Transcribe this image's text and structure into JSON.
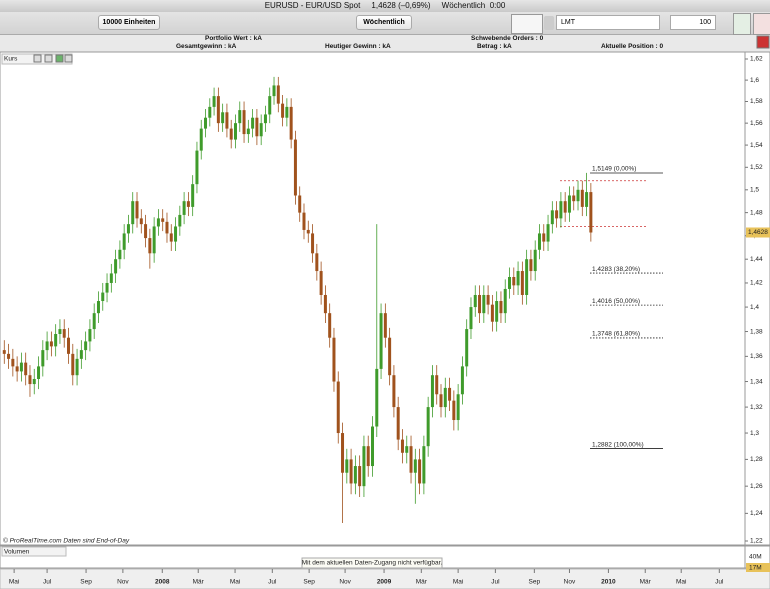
{
  "window": {
    "title": "EURUSD - EUR/USD Spot     1,4628 (–0,69%)     Wöchentlich  0:00"
  },
  "toolbar": {
    "units": "10000 Einheiten",
    "period": "Wöchentlich",
    "order_type": "LMT",
    "quantity": "100"
  },
  "info": {
    "portfolio_value": "Portfolio Wert : kA",
    "pending_orders": "Schwebende Orders : 0",
    "total_gain": "Gesamtgewinn : kA",
    "todays_gain": "Heutiger Gewinn : kA",
    "amount": "Betrag : kA",
    "position": "Aktuelle Position : 0"
  },
  "panels": {
    "price": "Kurs",
    "volume": "Volumen",
    "volume_notice": "Mit dem aktuellen Daten-Zugang nicht verfügbar.",
    "credit": "© ProRealTime.com  Daten sind End-of-Day",
    "volume_axis_top": "40M",
    "volume_axis_last": "17M"
  },
  "chart_data": {
    "type": "candlestick",
    "log_scale": true,
    "up_color": "#3f9b2b",
    "down_color": "#a0521d",
    "xlim": [
      0,
      174
    ],
    "ylim": [
      1.22,
      1.62
    ],
    "x": [
      1,
      2,
      3,
      4,
      5,
      6,
      7,
      8,
      9,
      10,
      11,
      12,
      13,
      14,
      15,
      16,
      17,
      18,
      19,
      20,
      21,
      22,
      23,
      24,
      25,
      26,
      27,
      28,
      29,
      30,
      31,
      32,
      33,
      34,
      35,
      36,
      37,
      38,
      39,
      40,
      41,
      42,
      43,
      44,
      45,
      46,
      47,
      48,
      49,
      50,
      51,
      52,
      53,
      54,
      55,
      56,
      57,
      58,
      59,
      60,
      61,
      62,
      63,
      64,
      65,
      66,
      67,
      68,
      69,
      70,
      71,
      72,
      73,
      74,
      75,
      76,
      77,
      78,
      79,
      80,
      81,
      82,
      83,
      84,
      85,
      86,
      87,
      88,
      89,
      90,
      91,
      92,
      93,
      94,
      95,
      96,
      97,
      98,
      99,
      100,
      101,
      102,
      103,
      104,
      105,
      106,
      107,
      108,
      109,
      110,
      111,
      112,
      113,
      114,
      115,
      116,
      117,
      118,
      119,
      120,
      121,
      122,
      123,
      124,
      125,
      126,
      127,
      128,
      129,
      130,
      131,
      132,
      133,
      134,
      135,
      136,
      137,
      138
    ],
    "open": [
      1.365,
      1.362,
      1.358,
      1.352,
      1.348,
      1.355,
      1.345,
      1.338,
      1.342,
      1.352,
      1.365,
      1.372,
      1.368,
      1.378,
      1.382,
      1.375,
      1.362,
      1.345,
      1.358,
      1.365,
      1.372,
      1.382,
      1.395,
      1.405,
      1.412,
      1.42,
      1.428,
      1.44,
      1.448,
      1.462,
      1.47,
      1.49,
      1.475,
      1.47,
      1.458,
      1.445,
      1.468,
      1.475,
      1.472,
      1.462,
      1.455,
      1.468,
      1.478,
      1.49,
      1.485,
      1.505,
      1.535,
      1.555,
      1.565,
      1.575,
      1.585,
      1.56,
      1.57,
      1.555,
      1.545,
      1.56,
      1.572,
      1.55,
      1.555,
      1.565,
      1.548,
      1.56,
      1.568,
      1.585,
      1.595,
      1.578,
      1.565,
      1.575,
      1.545,
      1.495,
      1.48,
      1.465,
      1.462,
      1.445,
      1.43,
      1.41,
      1.395,
      1.375,
      1.34,
      1.3,
      1.27,
      1.28,
      1.262,
      1.275,
      1.26,
      1.29,
      1.275,
      1.305,
      1.35,
      1.395,
      1.375,
      1.345,
      1.32,
      1.295,
      1.285,
      1.29,
      1.27,
      1.28,
      1.262,
      1.29,
      1.32,
      1.345,
      1.33,
      1.32,
      1.335,
      1.325,
      1.31,
      1.33,
      1.352,
      1.382,
      1.4,
      1.41,
      1.395,
      1.41,
      1.402,
      1.388,
      1.405,
      1.395,
      1.415,
      1.425,
      1.418,
      1.43,
      1.41,
      1.44,
      1.43,
      1.448,
      1.462,
      1.455,
      1.47,
      1.482,
      1.475,
      1.49,
      1.48,
      1.495,
      1.49,
      1.5,
      1.485,
      1.498
    ],
    "high": [
      1.373,
      1.37,
      1.366,
      1.36,
      1.363,
      1.363,
      1.353,
      1.35,
      1.36,
      1.373,
      1.38,
      1.38,
      1.386,
      1.39,
      1.39,
      1.383,
      1.37,
      1.366,
      1.373,
      1.38,
      1.39,
      1.403,
      1.413,
      1.42,
      1.428,
      1.436,
      1.448,
      1.456,
      1.47,
      1.478,
      1.498,
      1.498,
      1.483,
      1.478,
      1.466,
      1.476,
      1.483,
      1.483,
      1.48,
      1.47,
      1.476,
      1.486,
      1.498,
      1.498,
      1.513,
      1.543,
      1.563,
      1.573,
      1.583,
      1.593,
      1.593,
      1.578,
      1.578,
      1.563,
      1.568,
      1.58,
      1.58,
      1.563,
      1.573,
      1.573,
      1.568,
      1.576,
      1.593,
      1.603,
      1.603,
      1.586,
      1.583,
      1.583,
      1.553,
      1.503,
      1.488,
      1.473,
      1.47,
      1.453,
      1.438,
      1.418,
      1.403,
      1.383,
      1.348,
      1.308,
      1.288,
      1.288,
      1.283,
      1.283,
      1.298,
      1.298,
      1.313,
      1.47,
      1.403,
      1.403,
      1.383,
      1.353,
      1.328,
      1.303,
      1.298,
      1.298,
      1.288,
      1.288,
      1.298,
      1.328,
      1.353,
      1.353,
      1.338,
      1.343,
      1.343,
      1.333,
      1.338,
      1.36,
      1.39,
      1.408,
      1.418,
      1.418,
      1.418,
      1.418,
      1.41,
      1.413,
      1.413,
      1.423,
      1.433,
      1.433,
      1.438,
      1.438,
      1.448,
      1.448,
      1.456,
      1.47,
      1.47,
      1.478,
      1.49,
      1.49,
      1.498,
      1.498,
      1.503,
      1.503,
      1.508,
      1.508,
      1.515,
      1.506
    ],
    "low": [
      1.354,
      1.35,
      1.344,
      1.34,
      1.34,
      1.337,
      1.328,
      1.33,
      1.334,
      1.344,
      1.357,
      1.36,
      1.36,
      1.37,
      1.367,
      1.354,
      1.337,
      1.337,
      1.35,
      1.357,
      1.364,
      1.374,
      1.387,
      1.397,
      1.404,
      1.412,
      1.42,
      1.432,
      1.44,
      1.454,
      1.462,
      1.467,
      1.462,
      1.45,
      1.432,
      1.437,
      1.46,
      1.464,
      1.454,
      1.447,
      1.447,
      1.46,
      1.47,
      1.477,
      1.477,
      1.497,
      1.527,
      1.547,
      1.557,
      1.567,
      1.552,
      1.552,
      1.547,
      1.537,
      1.537,
      1.552,
      1.542,
      1.542,
      1.547,
      1.54,
      1.54,
      1.552,
      1.56,
      1.577,
      1.57,
      1.557,
      1.557,
      1.537,
      1.487,
      1.472,
      1.457,
      1.454,
      1.437,
      1.422,
      1.402,
      1.387,
      1.367,
      1.332,
      1.292,
      1.233,
      1.262,
      1.254,
      1.254,
      1.252,
      1.252,
      1.267,
      1.267,
      1.297,
      1.342,
      1.367,
      1.337,
      1.312,
      1.287,
      1.277,
      1.277,
      1.262,
      1.247,
      1.254,
      1.254,
      1.282,
      1.312,
      1.322,
      1.312,
      1.312,
      1.317,
      1.302,
      1.302,
      1.322,
      1.344,
      1.374,
      1.392,
      1.387,
      1.387,
      1.394,
      1.38,
      1.38,
      1.387,
      1.387,
      1.407,
      1.41,
      1.41,
      1.402,
      1.402,
      1.422,
      1.422,
      1.44,
      1.447,
      1.447,
      1.462,
      1.467,
      1.467,
      1.472,
      1.472,
      1.482,
      1.482,
      1.477,
      1.477,
      1.455
    ],
    "close": [
      1.362,
      1.358,
      1.352,
      1.348,
      1.355,
      1.345,
      1.338,
      1.342,
      1.352,
      1.365,
      1.372,
      1.368,
      1.378,
      1.382,
      1.375,
      1.362,
      1.345,
      1.358,
      1.365,
      1.372,
      1.382,
      1.395,
      1.405,
      1.412,
      1.42,
      1.428,
      1.44,
      1.448,
      1.462,
      1.47,
      1.49,
      1.475,
      1.47,
      1.458,
      1.445,
      1.468,
      1.475,
      1.472,
      1.462,
      1.455,
      1.468,
      1.478,
      1.49,
      1.485,
      1.505,
      1.535,
      1.555,
      1.565,
      1.575,
      1.585,
      1.56,
      1.57,
      1.555,
      1.545,
      1.56,
      1.572,
      1.55,
      1.555,
      1.565,
      1.548,
      1.56,
      1.568,
      1.585,
      1.595,
      1.578,
      1.565,
      1.575,
      1.545,
      1.495,
      1.48,
      1.465,
      1.462,
      1.445,
      1.43,
      1.41,
      1.395,
      1.375,
      1.34,
      1.3,
      1.27,
      1.28,
      1.262,
      1.275,
      1.26,
      1.29,
      1.275,
      1.305,
      1.35,
      1.395,
      1.375,
      1.345,
      1.32,
      1.295,
      1.285,
      1.29,
      1.27,
      1.28,
      1.262,
      1.29,
      1.32,
      1.345,
      1.33,
      1.32,
      1.335,
      1.325,
      1.31,
      1.33,
      1.352,
      1.382,
      1.4,
      1.41,
      1.395,
      1.41,
      1.402,
      1.388,
      1.405,
      1.395,
      1.415,
      1.425,
      1.418,
      1.43,
      1.41,
      1.44,
      1.43,
      1.448,
      1.462,
      1.455,
      1.47,
      1.482,
      1.475,
      1.49,
      1.48,
      1.495,
      1.49,
      1.5,
      1.485,
      1.498,
      1.4628
    ],
    "yticks": [
      {
        "value": 1.22,
        "label": "1,22"
      },
      {
        "value": 1.24,
        "label": "1,24"
      },
      {
        "value": 1.26,
        "label": "1,26"
      },
      {
        "value": 1.28,
        "label": "1,28"
      },
      {
        "value": 1.3,
        "label": "1,3"
      },
      {
        "value": 1.32,
        "label": "1,32"
      },
      {
        "value": 1.34,
        "label": "1,34"
      },
      {
        "value": 1.36,
        "label": "1,36"
      },
      {
        "value": 1.38,
        "label": "1,38"
      },
      {
        "value": 1.4,
        "label": "1,4"
      },
      {
        "value": 1.42,
        "label": "1,42"
      },
      {
        "value": 1.44,
        "label": "1,44"
      },
      {
        "value": 1.46,
        "label": "1,46"
      },
      {
        "value": 1.48,
        "label": "1,48"
      },
      {
        "value": 1.5,
        "label": "1,5"
      },
      {
        "value": 1.52,
        "label": "1,52"
      },
      {
        "value": 1.54,
        "label": "1,54"
      },
      {
        "value": 1.56,
        "label": "1,56"
      },
      {
        "value": 1.58,
        "label": "1,58"
      },
      {
        "value": 1.6,
        "label": "1,6"
      },
      {
        "value": 1.62,
        "label": "1,62"
      }
    ],
    "xticks": [
      {
        "value": 3.3,
        "label": "Mai"
      },
      {
        "value": 11,
        "label": "Jul"
      },
      {
        "value": 20.1,
        "label": "Sep"
      },
      {
        "value": 28.7,
        "label": "Nov"
      },
      {
        "value": 37.9,
        "label": "2008"
      },
      {
        "value": 46.3,
        "label": "Mär"
      },
      {
        "value": 54.9,
        "label": "Mai"
      },
      {
        "value": 63.6,
        "label": "Jul"
      },
      {
        "value": 72.2,
        "label": "Sep"
      },
      {
        "value": 80.6,
        "label": "Nov"
      },
      {
        "value": 89.7,
        "label": "2009"
      },
      {
        "value": 98.4,
        "label": "Mär"
      },
      {
        "value": 107,
        "label": "Mai"
      },
      {
        "value": 115.7,
        "label": "Jul"
      },
      {
        "value": 124.8,
        "label": "Sep"
      },
      {
        "value": 133,
        "label": "Nov"
      },
      {
        "value": 142.1,
        "label": "2010"
      },
      {
        "value": 150.7,
        "label": "Mär"
      },
      {
        "value": 159.1,
        "label": "Mai"
      },
      {
        "value": 168,
        "label": "Jul"
      }
    ],
    "last_price": {
      "value": 1.4628,
      "label": "1,4628"
    },
    "fib_levels": [
      {
        "value": 1.5149,
        "label": "1,5149 (0,00%)"
      },
      {
        "value": 1.4283,
        "label": "1,4283 (38,20%)"
      },
      {
        "value": 1.4016,
        "label": "1,4016 (50,00%)"
      },
      {
        "value": 1.3748,
        "label": "1,3748 (61,80%)"
      },
      {
        "value": 1.2882,
        "label": "1,2882 (100,00%)"
      }
    ],
    "reference_lines": [
      1.508,
      1.468
    ]
  }
}
